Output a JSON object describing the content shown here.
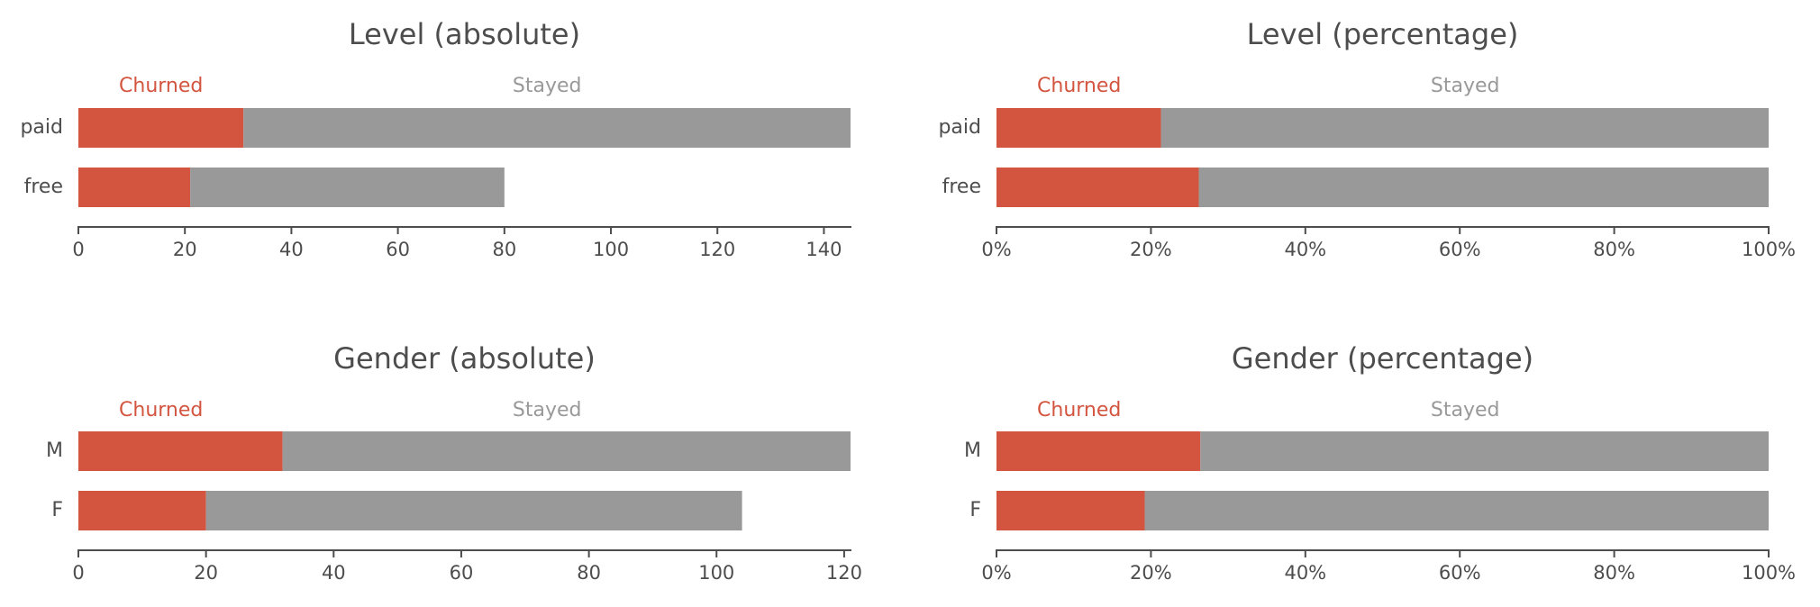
{
  "colors": {
    "churned": "#d35540",
    "stayed": "#999999",
    "text": "#4d4d4d"
  },
  "chart_data": [
    {
      "type": "bar",
      "orientation": "horizontal",
      "stacked": true,
      "title": "Level (absolute)",
      "categories": [
        "paid",
        "free"
      ],
      "series": [
        {
          "name": "Churned",
          "values": [
            31,
            21
          ]
        },
        {
          "name": "Stayed",
          "values": [
            114,
            59
          ]
        }
      ],
      "xlim": [
        0,
        145
      ],
      "ticks": [
        0,
        20,
        40,
        60,
        80,
        100,
        120,
        140
      ],
      "tick_labels": [
        "0",
        "20",
        "40",
        "60",
        "80",
        "100",
        "120",
        "140"
      ],
      "legend_position": "top",
      "grid": false
    },
    {
      "type": "bar",
      "orientation": "horizontal",
      "stacked": true,
      "title": "Level (percentage)",
      "categories": [
        "paid",
        "free"
      ],
      "series": [
        {
          "name": "Churned",
          "values": [
            0.213,
            0.262
          ]
        },
        {
          "name": "Stayed",
          "values": [
            0.787,
            0.738
          ]
        }
      ],
      "xlim": [
        0,
        1
      ],
      "ticks": [
        0,
        0.2,
        0.4,
        0.6,
        0.8,
        1.0
      ],
      "tick_labels": [
        "0%",
        "20%",
        "40%",
        "60%",
        "80%",
        "100%"
      ],
      "legend_position": "top",
      "grid": false
    },
    {
      "type": "bar",
      "orientation": "horizontal",
      "stacked": true,
      "title": "Gender (absolute)",
      "categories": [
        "M",
        "F"
      ],
      "series": [
        {
          "name": "Churned",
          "values": [
            32,
            20
          ]
        },
        {
          "name": "Stayed",
          "values": [
            89,
            84
          ]
        }
      ],
      "xlim": [
        0,
        121
      ],
      "ticks": [
        0,
        20,
        40,
        60,
        80,
        100,
        120
      ],
      "tick_labels": [
        "0",
        "20",
        "40",
        "60",
        "80",
        "100",
        "120"
      ],
      "legend_position": "top",
      "grid": false
    },
    {
      "type": "bar",
      "orientation": "horizontal",
      "stacked": true,
      "title": "Gender (percentage)",
      "categories": [
        "M",
        "F"
      ],
      "series": [
        {
          "name": "Churned",
          "values": [
            0.264,
            0.192
          ]
        },
        {
          "name": "Stayed",
          "values": [
            0.736,
            0.808
          ]
        }
      ],
      "xlim": [
        0,
        1
      ],
      "ticks": [
        0,
        0.2,
        0.4,
        0.6,
        0.8,
        1.0
      ],
      "tick_labels": [
        "0%",
        "20%",
        "40%",
        "60%",
        "80%",
        "100%"
      ],
      "legend_position": "top",
      "grid": false
    }
  ]
}
